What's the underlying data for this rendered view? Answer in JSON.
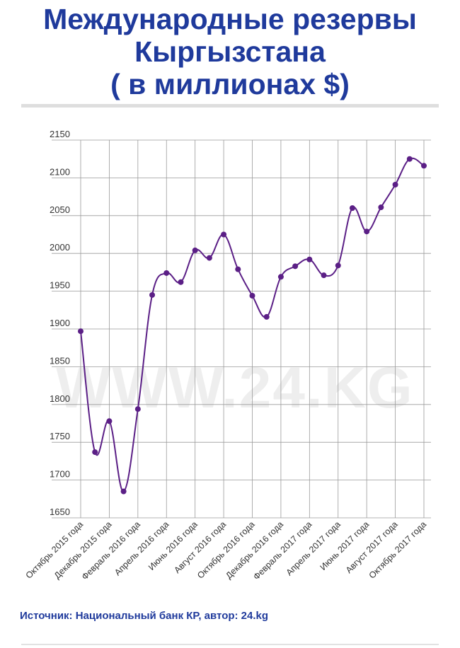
{
  "header": {
    "title_line1": "Международные резервы",
    "title_line2": "Кыргызстана",
    "title_line3": "( в миллионах $)"
  },
  "watermark": "WWW.24.KG",
  "source": "Источник: Национальный банк КР, автор: 24.kg",
  "colors": {
    "line": "#5b1f86",
    "marker": "#5b1f86",
    "title": "#1f3a9c",
    "grid": "#9a9a9a"
  },
  "chart_data": {
    "type": "line",
    "title": "Международные резервы Кыргызстана ( в миллионах $)",
    "xlabel": "",
    "ylabel": "",
    "ylim": [
      1650,
      2150
    ],
    "yticks": [
      1650,
      1700,
      1750,
      1800,
      1850,
      1900,
      1950,
      2000,
      2050,
      2100,
      2150
    ],
    "grid": true,
    "xtick_labels": [
      "Октябрь 2015 года",
      "Декабрь 2015 года",
      "Февраль 2016 года",
      "Апрель 2016 года",
      "Июнь 2016 года",
      "Август 2016 года",
      "Октябрь 2016 года",
      "Декабрь 2016 года",
      "Февраль 2017 года",
      "Апрель 2017 года",
      "Июнь 2017 года",
      "Август 2017 года",
      "Октябрь 2017 года"
    ],
    "series": [
      {
        "values": [
          1897,
          1737,
          1778,
          1685,
          1794,
          1945,
          1974,
          1962,
          2004,
          1994,
          2025,
          1979,
          1944,
          1916,
          1969,
          1983,
          1992,
          1971,
          1984,
          2060,
          2029,
          2061,
          2091,
          2125,
          2116
        ]
      }
    ]
  }
}
